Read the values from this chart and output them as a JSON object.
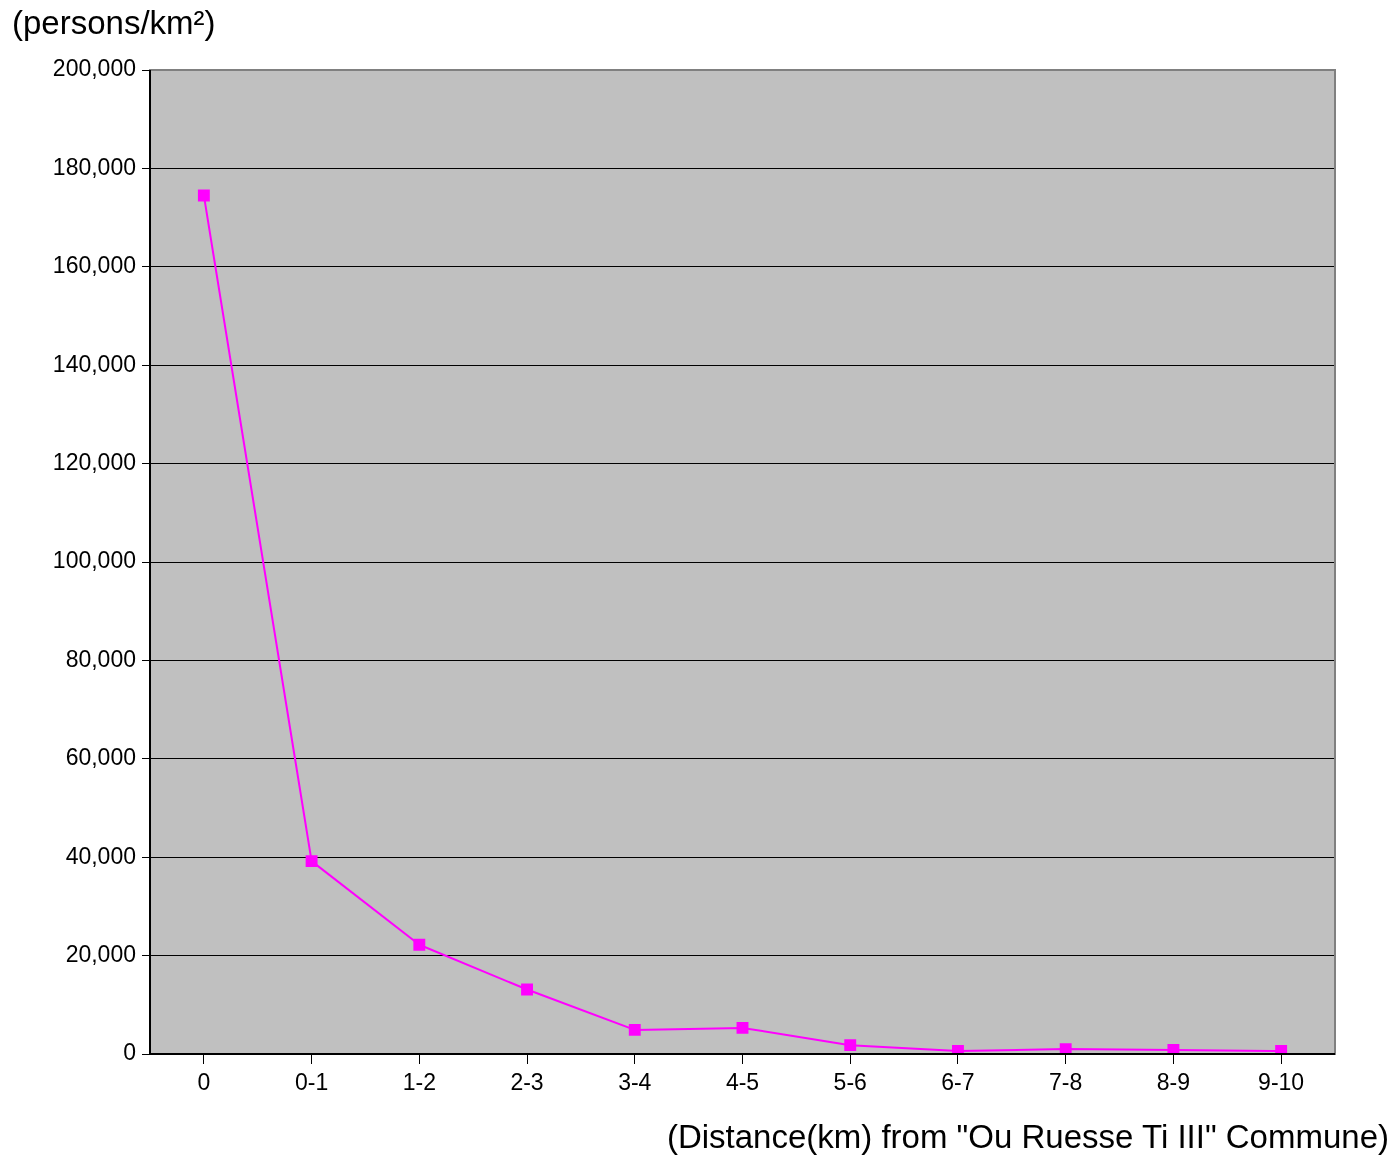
{
  "chart_data": {
    "type": "line",
    "ylabel": "(persons/km²)",
    "xlabel": "(Distance(km) from \"Ou Ruesse Ti III\" Commune)",
    "categories": [
      "0",
      "0-1",
      "1-2",
      "2-3",
      "3-4",
      "4-5",
      "5-6",
      "6-7",
      "7-8",
      "8-9",
      "9-10"
    ],
    "series": [
      {
        "color": "#ff00ff",
        "values": [
          174500,
          39200,
          22200,
          13100,
          4900,
          5300,
          1800,
          600,
          1000,
          800,
          600
        ]
      }
    ],
    "ylim": [
      0,
      200000
    ],
    "yticks": [
      0,
      {
        "value": 20000,
        "label": "20,000"
      },
      {
        "value": 40000,
        "label": "40,000"
      },
      {
        "value": 60000,
        "label": "60,000"
      },
      {
        "value": 80000,
        "label": "80,000"
      },
      {
        "value": 100000,
        "label": "100,000"
      },
      {
        "value": 120000,
        "label": "120,000"
      },
      {
        "value": 140000,
        "label": "140,000"
      },
      {
        "value": 160000,
        "label": "160,000"
      },
      {
        "value": 180000,
        "label": "180,000"
      },
      {
        "value": 200000,
        "label": "200,000"
      }
    ],
    "grid": "y",
    "marker": "square",
    "line_style": "solid"
  }
}
